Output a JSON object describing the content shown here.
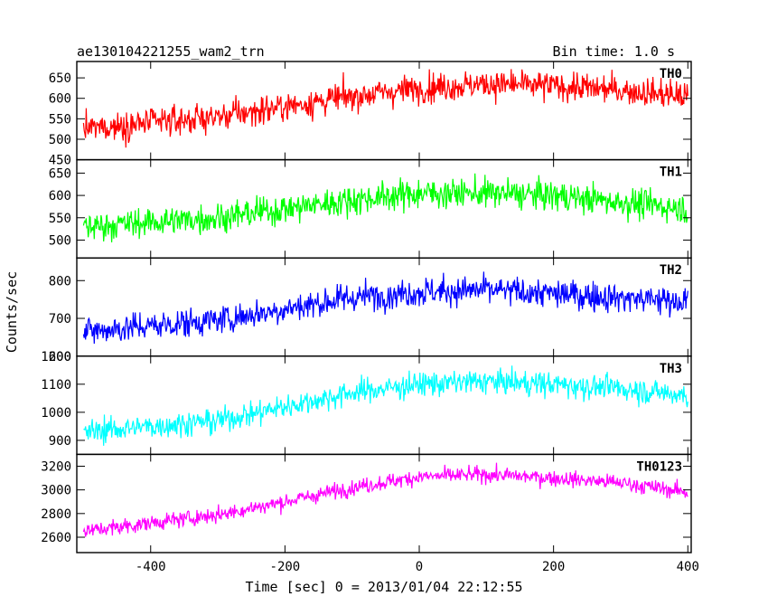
{
  "header": {
    "title": "ae130104221255_wam2_trn",
    "bin_time": "Bin time: 1.0 s"
  },
  "chart_data": {
    "type": "line",
    "xlabel": "Time [sec] 0 = 2013/01/04 22:12:55",
    "ylabel": "Counts/sec",
    "xlim": [
      -510,
      405
    ],
    "xticks": [
      -400,
      -200,
      0,
      200,
      400
    ],
    "grid": false,
    "panels": [
      {
        "label": "TH0",
        "color": "#ff0000",
        "ylim": [
          450,
          690
        ],
        "yticks": [
          450,
          500,
          550,
          600,
          650
        ],
        "ytick_labels": [
          "450",
          "500",
          "550",
          "600",
          "650"
        ],
        "x_range": [
          -500,
          400
        ],
        "trend": {
          "x": [
            -500,
            -300,
            -200,
            -100,
            0,
            100,
            200,
            300,
            400
          ],
          "y": [
            525,
            555,
            580,
            605,
            625,
            635,
            630,
            620,
            605
          ]
        },
        "noise_sd": 32
      },
      {
        "label": "TH1",
        "color": "#00ff00",
        "ylim": [
          460,
          680
        ],
        "yticks": [
          500,
          550,
          600,
          650
        ],
        "ytick_labels": [
          "500",
          "550",
          "600",
          "650"
        ],
        "x_range": [
          -500,
          400
        ],
        "trend": {
          "x": [
            -500,
            -300,
            -200,
            -100,
            0,
            100,
            200,
            300,
            400
          ],
          "y": [
            530,
            550,
            570,
            590,
            605,
            605,
            600,
            585,
            570
          ]
        },
        "noise_sd": 30
      },
      {
        "label": "TH2",
        "color": "#0000ff",
        "ylim": [
          600,
          860
        ],
        "yticks": [
          600,
          700,
          800
        ],
        "ytick_labels": [
          "600",
          "700",
          "800"
        ],
        "x_range": [
          -500,
          400
        ],
        "trend": {
          "x": [
            -500,
            -300,
            -200,
            -100,
            0,
            100,
            200,
            300,
            400
          ],
          "y": [
            665,
            695,
            725,
            755,
            770,
            775,
            765,
            755,
            745
          ]
        },
        "noise_sd": 35
      },
      {
        "label": "TH3",
        "color": "#00ffff",
        "ylim": [
          850,
          1200
        ],
        "yticks": [
          900,
          1000,
          1100,
          1200
        ],
        "ytick_labels": [
          "900",
          "1000",
          "1100",
          "1200"
        ],
        "x_range": [
          -500,
          400
        ],
        "trend": {
          "x": [
            -500,
            -300,
            -200,
            -100,
            0,
            100,
            200,
            300,
            400
          ],
          "y": [
            930,
            970,
            1020,
            1070,
            1100,
            1110,
            1100,
            1085,
            1060
          ]
        },
        "noise_sd": 40
      },
      {
        "label": "TH0123",
        "color": "#ff00ff",
        "ylim": [
          2470,
          3300
        ],
        "yticks": [
          2600,
          2800,
          3000,
          3200
        ],
        "ytick_labels": [
          "2600",
          "2800",
          "3000",
          "3200"
        ],
        "x_range": [
          -500,
          400
        ],
        "trend": {
          "x": [
            -500,
            -300,
            -200,
            -100,
            0,
            100,
            200,
            300,
            400
          ],
          "y": [
            2650,
            2790,
            2900,
            3020,
            3110,
            3130,
            3100,
            3060,
            2980
          ]
        },
        "noise_sd": 60
      }
    ]
  }
}
